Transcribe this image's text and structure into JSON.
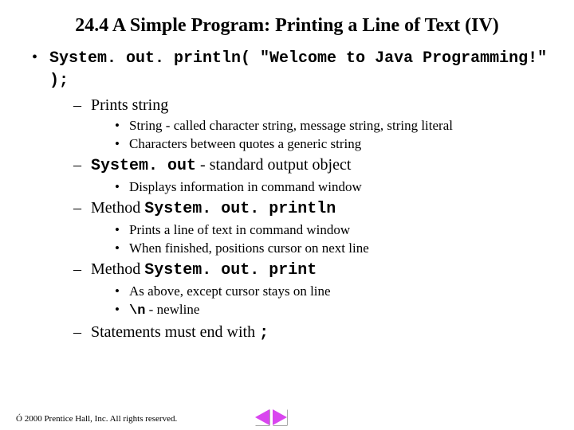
{
  "title": "24.4   A Simple Program: Printing a Line of Text (IV)",
  "codeLine": "System. out. println( \"Welcome to Java Programming!\" );",
  "d1": "Prints string",
  "s1a": "String - called character string, message string, string literal",
  "s1b": "Characters between quotes a generic string",
  "d2a": "System. out",
  "d2b": " - standard output object",
  "s2a": "Displays information in command window",
  "d3a": "Method ",
  "d3b": "System. out. println",
  "s3a": "Prints a line of text in command window",
  "s3b": "When finished, positions cursor on next line",
  "d4a": "Method ",
  "d4b": "System. out. print",
  "s4a": "As above, except cursor stays on line",
  "s4b_a": "\\n",
  "s4b_b": " - newline",
  "d5a": "Statements must end with ",
  "d5b": ";",
  "footer": "Ó 2000 Prentice Hall, Inc. All rights reserved."
}
